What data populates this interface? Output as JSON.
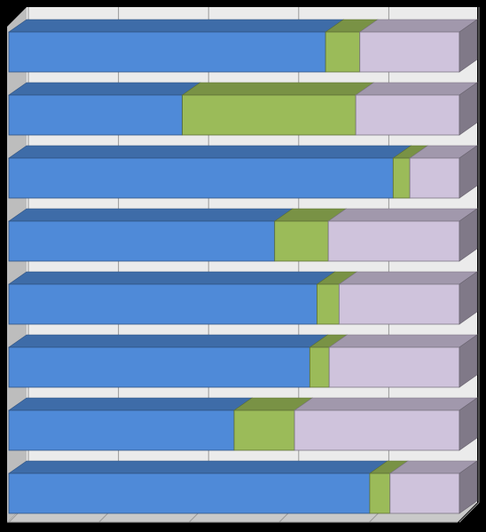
{
  "chart_data": {
    "type": "bar",
    "orientation": "horizontal",
    "stacked": "100-percent",
    "three_d": true,
    "grid": true,
    "legend": "none",
    "title": "",
    "xlabel": "",
    "ylabel": "",
    "xlim": [
      0,
      100
    ],
    "categories": [
      "",
      "",
      "",
      "",
      "",
      "",
      "",
      ""
    ],
    "series": [
      {
        "color": "#4f8ad8",
        "values": [
          70.3,
          38.5,
          85.3,
          59.0,
          68.4,
          66.8,
          50.0,
          80.1
        ]
      },
      {
        "color": "#9bbb59",
        "values": [
          7.6,
          38.5,
          3.7,
          11.9,
          4.9,
          4.3,
          13.4,
          4.5
        ]
      },
      {
        "color": "#cfc3dc",
        "values": [
          22.1,
          23.0,
          11.0,
          29.1,
          26.7,
          28.9,
          36.6,
          15.4
        ]
      }
    ]
  }
}
